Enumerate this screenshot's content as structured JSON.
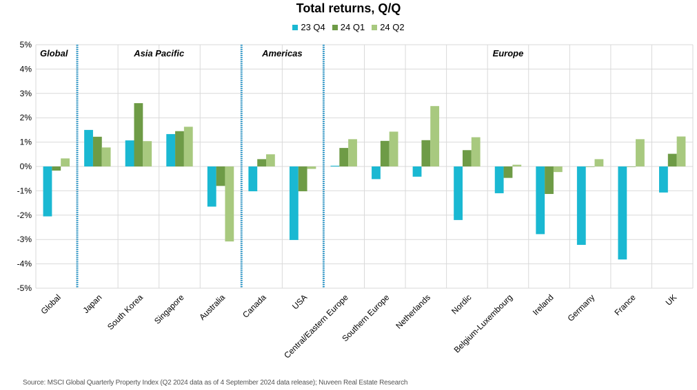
{
  "chart_data": {
    "type": "bar",
    "title": "Total returns, Q/Q",
    "categories": [
      "Global",
      "Japan",
      "South Korea",
      "Singapore",
      "Australia",
      "Canada",
      "USA",
      "Central/Eastern Europe",
      "Southern Europe",
      "Netherlands",
      "Nordic",
      "Belgium-Luxembourg",
      "Ireland",
      "Germany",
      "France",
      "UK"
    ],
    "series": [
      {
        "name": "23 Q4",
        "color": "#1ab8d2",
        "values": [
          -2.05,
          1.5,
          1.07,
          1.33,
          -1.65,
          -1.02,
          -3.02,
          0.03,
          -0.52,
          -0.42,
          -2.2,
          -1.1,
          -2.78,
          -3.22,
          -3.82,
          -1.07
        ]
      },
      {
        "name": "24 Q1",
        "color": "#6e9b46",
        "values": [
          -0.17,
          1.22,
          2.6,
          1.45,
          -0.8,
          0.3,
          -1.02,
          0.76,
          1.05,
          1.08,
          0.67,
          -0.47,
          -1.13,
          0.0,
          0.0,
          0.52
        ]
      },
      {
        "name": "24 Q2",
        "color": "#a8c97f",
        "values": [
          0.33,
          0.78,
          1.04,
          1.63,
          -3.08,
          0.5,
          -0.1,
          1.12,
          1.43,
          2.48,
          1.2,
          0.07,
          -0.23,
          0.3,
          1.12,
          1.23
        ]
      }
    ],
    "yticks": [
      "5%",
      "4%",
      "3%",
      "2%",
      "1%",
      "0%",
      "-1%",
      "-2%",
      "-3%",
      "-4%",
      "-5%"
    ],
    "ylim": [
      -5,
      5
    ],
    "grid": true,
    "legend_position": "top",
    "regions": [
      {
        "label": "Global",
        "start": 0,
        "end": 0
      },
      {
        "label": "Asia Pacific",
        "start": 1,
        "end": 4
      },
      {
        "label": "Americas",
        "start": 5,
        "end": 6
      },
      {
        "label": "Europe",
        "start": 7,
        "end": 15
      }
    ],
    "divider_color": "#1a8fc6",
    "source": "Source: MSCI Global Quarterly Property Index (Q2 2024 data as of 4 September 2024 data release); Nuveen Real Estate Research"
  }
}
